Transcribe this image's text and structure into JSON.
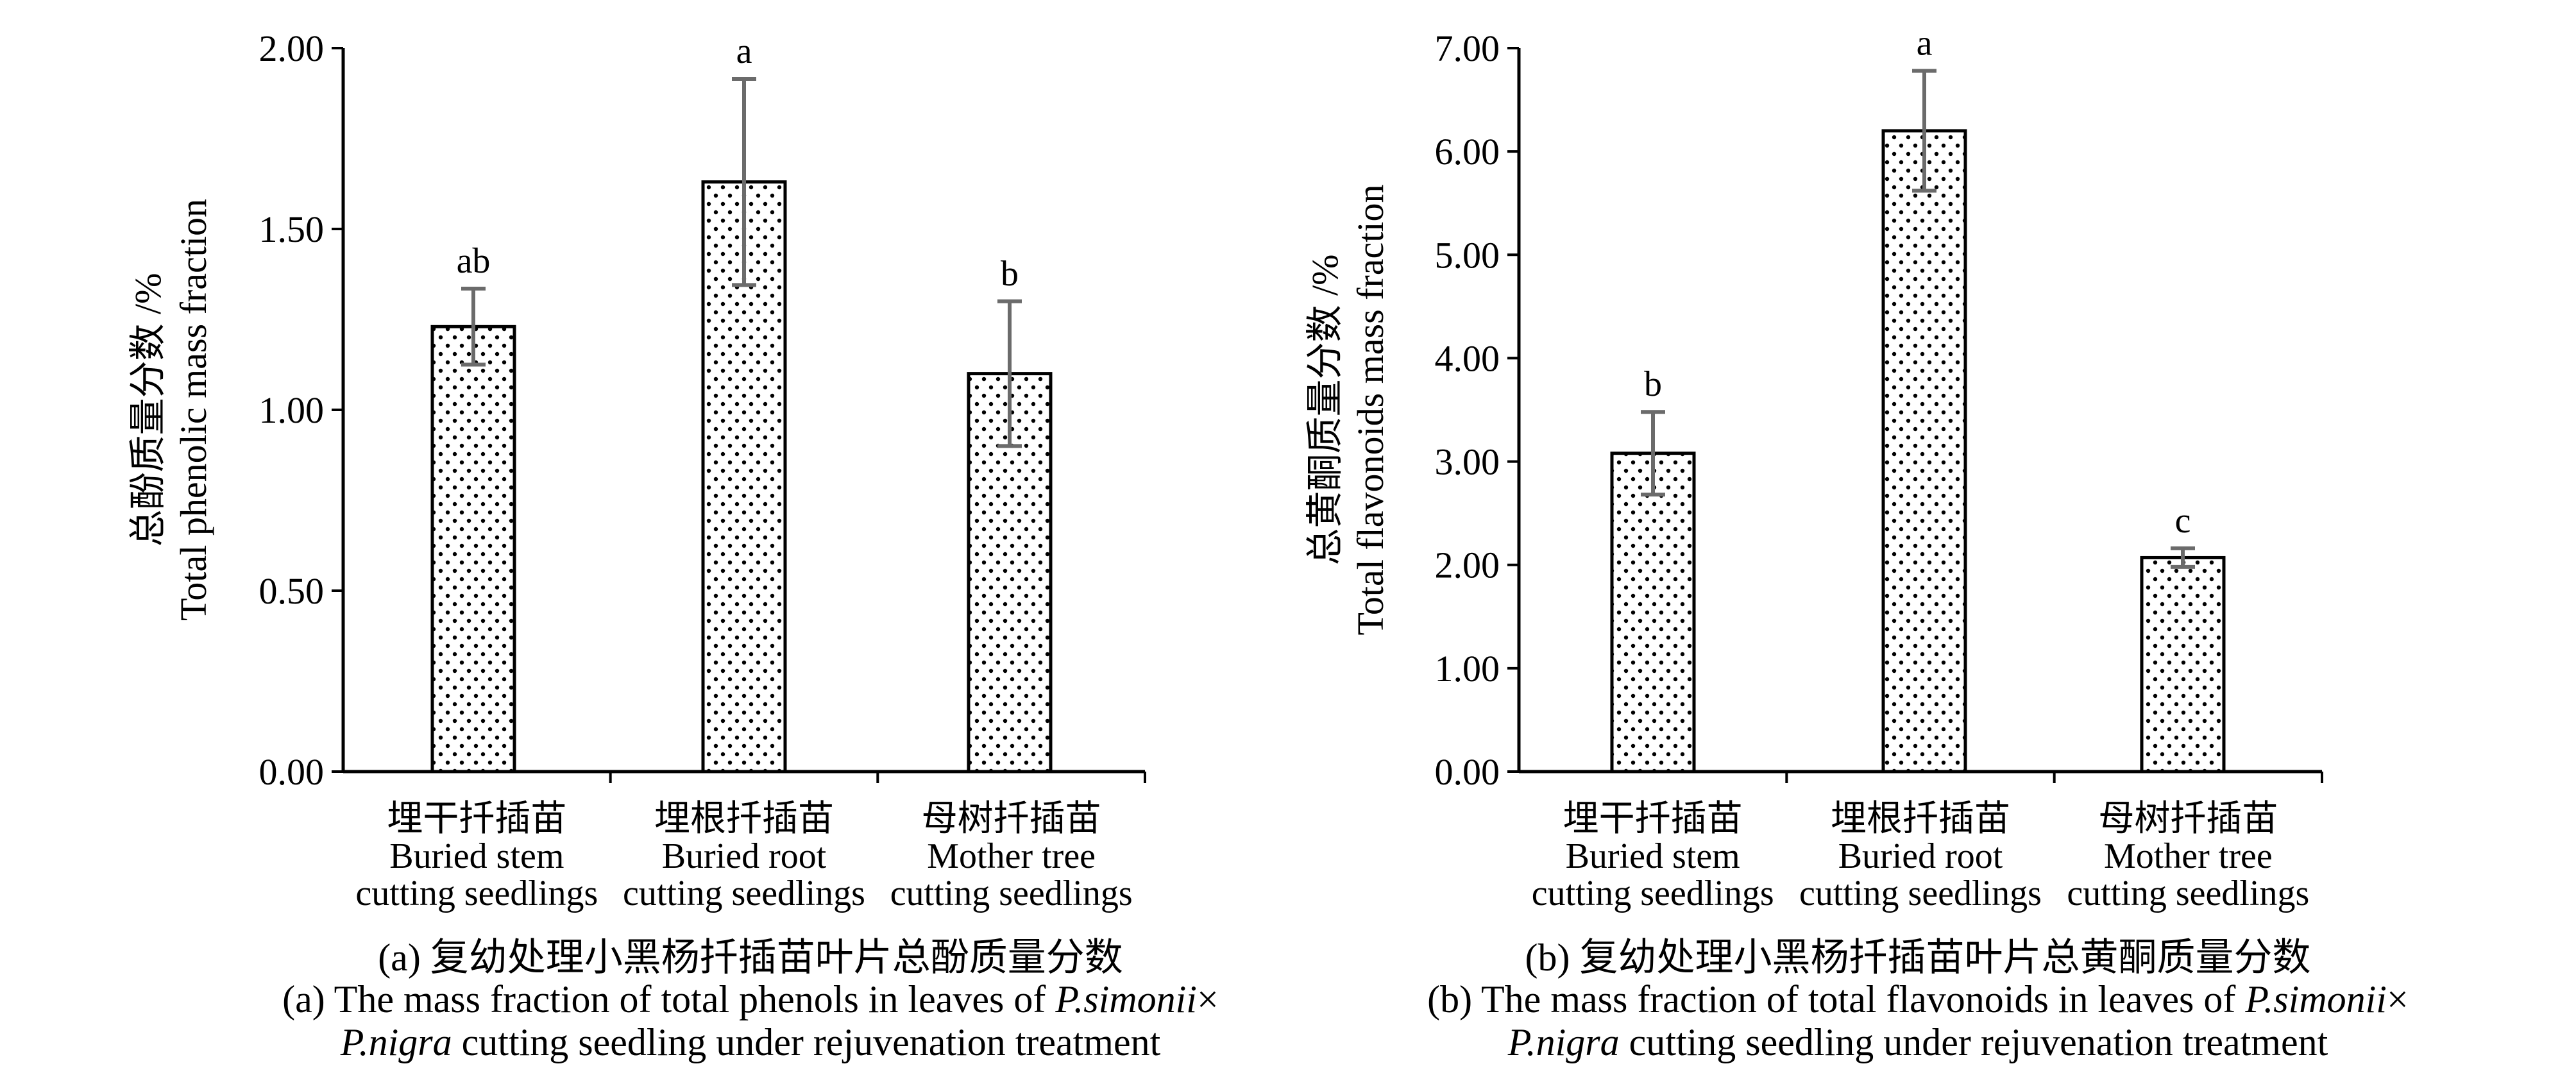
{
  "chart_data": [
    {
      "type": "bar",
      "categories": [
        {
          "zh": "埋干扦插苗",
          "en1": "Buried stem",
          "en2": "cutting seedlings"
        },
        {
          "zh": "埋根扦插苗",
          "en1": "Buried root",
          "en2": "cutting seedlings"
        },
        {
          "zh": "母树扦插苗",
          "en1": "Mother tree",
          "en2": "cutting seedlings"
        }
      ],
      "values": [
        1.23,
        1.63,
        1.1
      ],
      "errors": [
        0.105,
        0.285,
        0.2
      ],
      "significance": [
        "ab",
        "a",
        "b"
      ],
      "ylim": [
        0,
        2.0
      ],
      "yticks": [
        "0.00",
        "0.50",
        "1.00",
        "1.50",
        "2.00"
      ],
      "ylabel_zh": "总酚质量分数 /%",
      "ylabel_en": "Total phenolic mass fraction",
      "caption_zh": "(a) 复幼处理小黑杨扦插苗叶片总酚质量分数",
      "caption_en1_pre": "(a) The mass fraction of total phenols in leaves of ",
      "caption_en1_it": "P.simonii",
      "caption_en1_post": "×",
      "caption_en2_it": "P.nigra",
      "caption_en2_post": " cutting seedling under rejuvenation treatment"
    },
    {
      "type": "bar",
      "categories": [
        {
          "zh": "埋干扦插苗",
          "en1": "Buried stem",
          "en2": "cutting seedlings"
        },
        {
          "zh": "埋根扦插苗",
          "en1": "Buried root",
          "en2": "cutting seedlings"
        },
        {
          "zh": "母树扦插苗",
          "en1": "Mother tree",
          "en2": "cutting seedlings"
        }
      ],
      "values": [
        3.08,
        6.2,
        2.07
      ],
      "errors": [
        0.4,
        0.58,
        0.09
      ],
      "significance": [
        "b",
        "a",
        "c"
      ],
      "ylim": [
        0,
        7.0
      ],
      "yticks": [
        "0.00",
        "1.00",
        "2.00",
        "3.00",
        "4.00",
        "5.00",
        "6.00",
        "7.00"
      ],
      "ylabel_zh": "总黄酮质量分数 /%",
      "ylabel_en": "Total flavonoids mass fraction",
      "caption_zh": "(b) 复幼处理小黑杨扦插苗叶片总黄酮质量分数",
      "caption_en1_pre": "(b) The mass fraction of total flavonoids in leaves of ",
      "caption_en1_it": "P.simonii",
      "caption_en1_post": "×",
      "caption_en2_it": "P.nigra",
      "caption_en2_post": " cutting seedling under rejuvenation treatment"
    }
  ]
}
